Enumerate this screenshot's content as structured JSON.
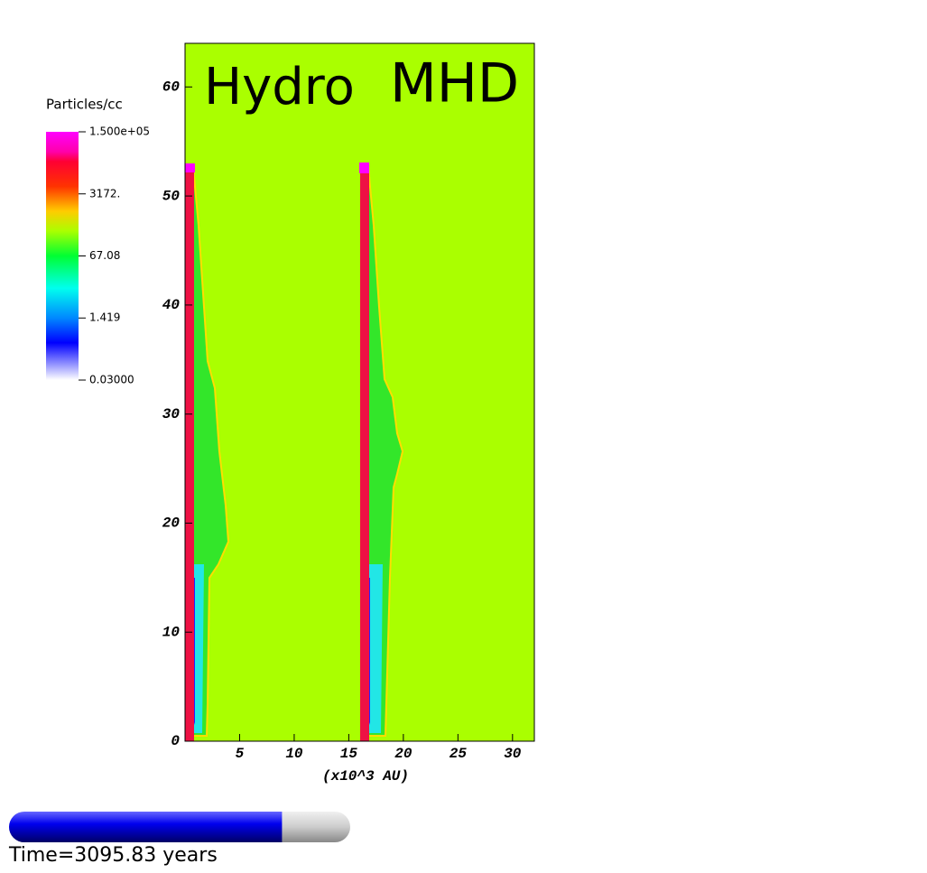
{
  "chart_data": {
    "type": "image",
    "annotations": [
      "Hydro",
      "MHD"
    ],
    "xlabel": "(x10^3 AU)",
    "xlim": [
      0,
      32
    ],
    "xticks": [
      5,
      10,
      15,
      20,
      25,
      30
    ],
    "ylim": [
      0,
      64
    ],
    "yticks": [
      0,
      10,
      20,
      30,
      40,
      50,
      60
    ],
    "background_color": "#aaff00",
    "colorbar": {
      "title": "Particles/cc",
      "log": true,
      "lim": [
        0.03,
        150000
      ],
      "ticks": [
        {
          "value": 150000,
          "label": "1.500e+05"
        },
        {
          "value": 3172,
          "label": "3172."
        },
        {
          "value": 67.08,
          "label": "67.08"
        },
        {
          "value": 1.419,
          "label": "1.419"
        },
        {
          "value": 0.03,
          "label": "0.03000"
        }
      ]
    },
    "progress": 0.8,
    "time_label": "Time=3095.83 years"
  }
}
